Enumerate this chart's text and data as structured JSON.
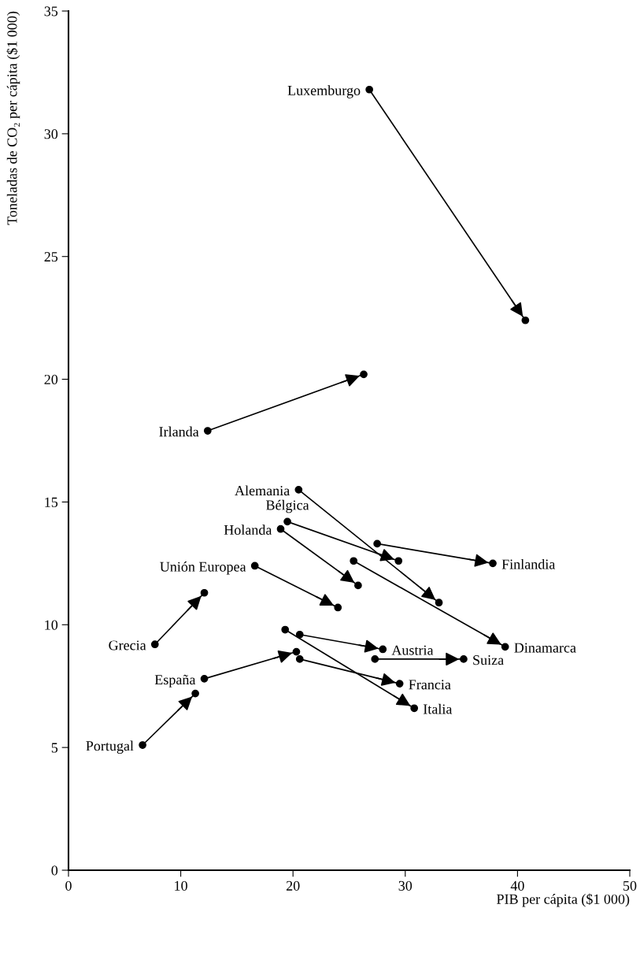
{
  "chart_data": {
    "type": "line",
    "xlabel": "PIB per cápita ($1 000)",
    "ylabel": "Toneladas de CO₂ per cápita ($1 000)",
    "xlim": [
      0,
      50
    ],
    "ylim": [
      0,
      35
    ],
    "xticks": [
      0,
      10,
      20,
      30,
      40,
      50
    ],
    "yticks": [
      0,
      5,
      10,
      15,
      20,
      25,
      30,
      35
    ],
    "grid": false,
    "legend": false,
    "marker": "circle",
    "line_style": "solid",
    "series": [
      {
        "color": "#000000",
        "x": [
          26.8,
          40.7
        ],
        "values": [
          31.8,
          22.4
        ]
      },
      {
        "color": "#000000",
        "x": [
          12.4,
          26.3
        ],
        "values": [
          17.9,
          20.2
        ]
      },
      {
        "color": "#000000",
        "x": [
          20.5,
          33.0
        ],
        "values": [
          15.5,
          10.9
        ]
      },
      {
        "color": "#000000",
        "x": [
          19.5,
          29.4
        ],
        "values": [
          14.2,
          12.6
        ]
      },
      {
        "color": "#000000",
        "x": [
          18.9,
          25.8
        ],
        "values": [
          13.9,
          11.6
        ]
      },
      {
        "color": "#000000",
        "x": [
          16.6,
          24.0
        ],
        "values": [
          12.4,
          10.7
        ]
      },
      {
        "color": "#000000",
        "x": [
          7.7,
          12.1
        ],
        "values": [
          9.2,
          11.3
        ]
      },
      {
        "color": "#000000",
        "x": [
          27.5,
          37.8
        ],
        "values": [
          13.3,
          12.5
        ]
      },
      {
        "color": "#000000",
        "x": [
          25.4,
          38.9
        ],
        "values": [
          12.6,
          9.1
        ]
      },
      {
        "color": "#000000",
        "x": [
          20.6,
          28.0
        ],
        "values": [
          9.6,
          9.0
        ]
      },
      {
        "color": "#000000",
        "x": [
          27.3,
          35.2
        ],
        "values": [
          8.6,
          8.6
        ]
      },
      {
        "color": "#000000",
        "x": [
          12.1,
          20.3
        ],
        "values": [
          7.8,
          8.9
        ]
      },
      {
        "color": "#000000",
        "x": [
          20.6,
          29.5
        ],
        "values": [
          8.6,
          7.6
        ]
      },
      {
        "color": "#000000",
        "x": [
          19.3,
          30.8
        ],
        "values": [
          9.8,
          6.6
        ]
      },
      {
        "color": "#000000",
        "x": [
          6.6,
          11.3
        ],
        "values": [
          5.1,
          7.2
        ]
      }
    ],
    "annotations": [
      {
        "text": "Luxemburgo",
        "x": 26.8,
        "y": 31.8
      },
      {
        "text": "Irlanda",
        "x": 12.4,
        "y": 17.9
      },
      {
        "text": "Alemania",
        "x": 20.5,
        "y": 15.5
      },
      {
        "text": "Holanda",
        "x": 18.9,
        "y": 13.9
      },
      {
        "text": "Bélgica",
        "x": 19.5,
        "y": 14.2
      },
      {
        "text": "Unión Europea",
        "x": 16.6,
        "y": 12.4
      },
      {
        "text": "Grecia",
        "x": 7.7,
        "y": 9.2
      },
      {
        "text": "Finlandia",
        "x": 37.8,
        "y": 12.5
      },
      {
        "text": "Dinamarca",
        "x": 38.9,
        "y": 9.1
      },
      {
        "text": "Austria",
        "x": 28.0,
        "y": 9.0
      },
      {
        "text": "Suiza",
        "x": 35.2,
        "y": 8.6
      },
      {
        "text": "España",
        "x": 12.1,
        "y": 7.8
      },
      {
        "text": "Francia",
        "x": 29.5,
        "y": 7.6
      },
      {
        "text": "Italia",
        "x": 30.8,
        "y": 6.6
      },
      {
        "text": "Portugal",
        "x": 6.6,
        "y": 5.1
      }
    ]
  }
}
